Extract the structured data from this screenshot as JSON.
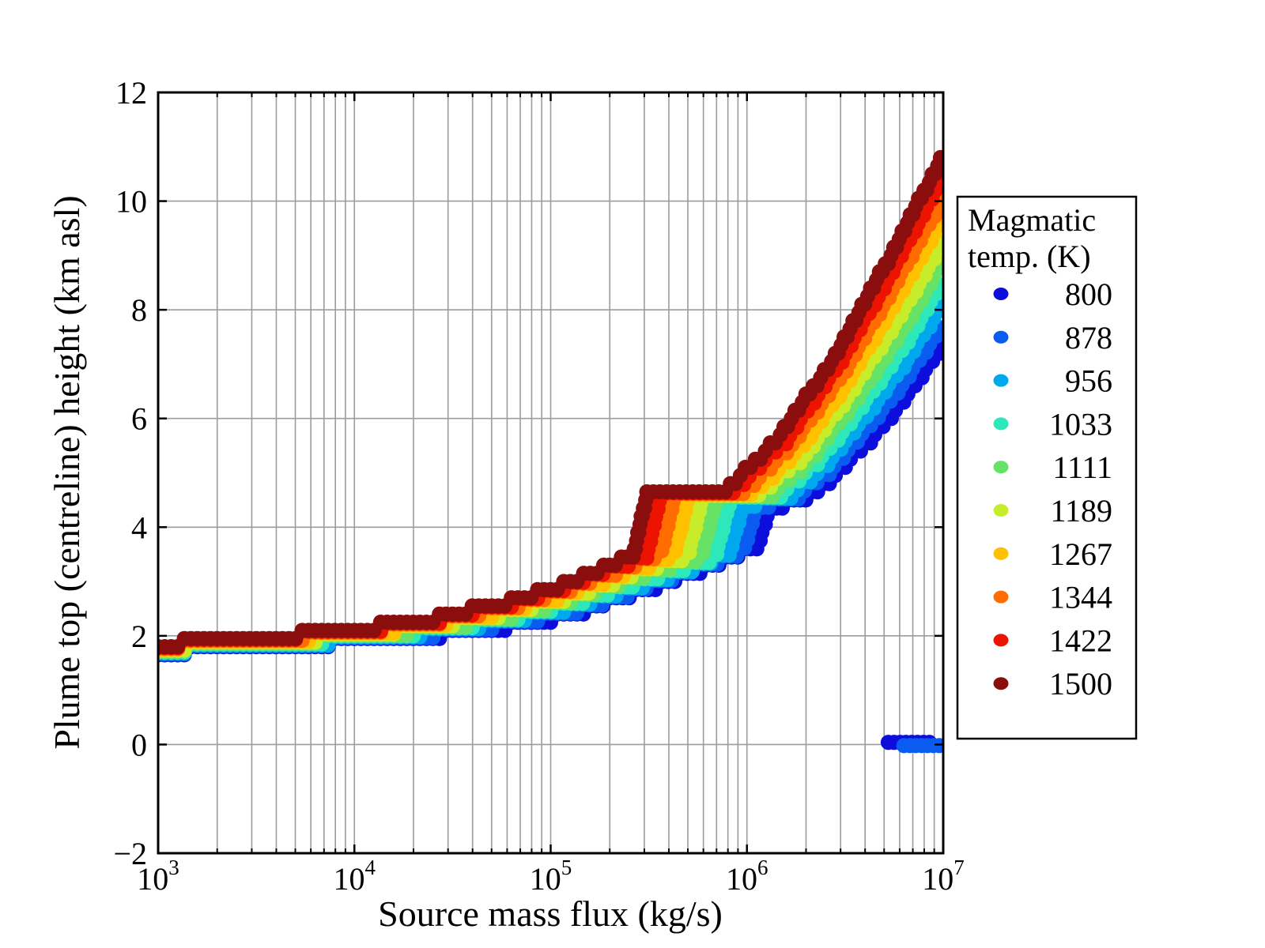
{
  "chart_data": {
    "type": "scatter",
    "title": "",
    "xlabel": "Source mass flux (kg/s)",
    "ylabel": "Plume top (centreline) height (km asl)",
    "x_scale": "log",
    "xlim_log10": [
      3,
      7
    ],
    "ylim": [
      -2,
      12
    ],
    "x_tick_exponents": [
      3,
      4,
      5,
      6,
      7
    ],
    "y_ticks": [
      -2,
      0,
      2,
      4,
      6,
      8,
      10,
      12
    ],
    "y_gridlines": [
      0,
      2,
      4,
      6,
      8,
      10
    ],
    "grid": "vertical minor+major log lines, horizontal major lines",
    "legend_title_line1": "Magmatic",
    "legend_title_line2": "temp. (K)",
    "legend_position": "right of axes",
    "series": [
      {
        "label": "800",
        "temp_K": 800,
        "color": "#0e0edc",
        "points_log10flux_vs_km": [
          [
            3,
            1.7
          ],
          [
            3.5,
            1.78
          ],
          [
            4,
            1.9
          ],
          [
            4.4,
            2.0
          ],
          [
            4.8,
            2.18
          ],
          [
            5.1,
            2.38
          ],
          [
            5.6,
            3.0
          ],
          [
            6.05,
            3.62
          ],
          [
            6.12,
            4.4
          ],
          [
            6.27,
            4.46
          ],
          [
            6.45,
            4.95
          ],
          [
            6.63,
            5.61
          ],
          [
            6.82,
            6.44
          ],
          [
            7,
            7.35
          ]
        ]
      },
      {
        "label": "878",
        "temp_K": 878,
        "color": "#0a5cf0",
        "points_log10flux_vs_km": [
          [
            3,
            1.72
          ],
          [
            3.5,
            1.8
          ],
          [
            4,
            1.92
          ],
          [
            4.4,
            2.04
          ],
          [
            4.8,
            2.23
          ],
          [
            5.1,
            2.45
          ],
          [
            5.55,
            2.98
          ],
          [
            5.98,
            3.55
          ],
          [
            6.05,
            4.42
          ],
          [
            6.23,
            4.48
          ],
          [
            6.42,
            5.02
          ],
          [
            6.61,
            5.8
          ],
          [
            6.81,
            6.72
          ],
          [
            7,
            7.74
          ]
        ]
      },
      {
        "label": "956",
        "temp_K": 956,
        "color": "#00a8ee",
        "points_log10flux_vs_km": [
          [
            3,
            1.73
          ],
          [
            3.5,
            1.82
          ],
          [
            4,
            1.94
          ],
          [
            4.4,
            2.07
          ],
          [
            4.8,
            2.28
          ],
          [
            5.1,
            2.52
          ],
          [
            5.5,
            2.96
          ],
          [
            5.91,
            3.5
          ],
          [
            5.98,
            4.44
          ],
          [
            6.19,
            4.5
          ],
          [
            6.39,
            5.1
          ],
          [
            6.59,
            5.97
          ],
          [
            6.8,
            7.0
          ],
          [
            7,
            8.13
          ]
        ]
      },
      {
        "label": "1033",
        "temp_K": 1033,
        "color": "#2de8b8",
        "points_log10flux_vs_km": [
          [
            3,
            1.75
          ],
          [
            3.5,
            1.84
          ],
          [
            4,
            1.96
          ],
          [
            4.4,
            2.11
          ],
          [
            4.8,
            2.33
          ],
          [
            5.1,
            2.59
          ],
          [
            5.48,
            3.03
          ],
          [
            5.84,
            3.45
          ],
          [
            5.91,
            4.47
          ],
          [
            6.14,
            4.53
          ],
          [
            6.36,
            5.19
          ],
          [
            6.57,
            6.15
          ],
          [
            6.79,
            7.28
          ],
          [
            7,
            8.52
          ]
        ]
      },
      {
        "label": "1111",
        "temp_K": 1111,
        "color": "#66e266",
        "points_log10flux_vs_km": [
          [
            3,
            1.77
          ],
          [
            3.5,
            1.86
          ],
          [
            4,
            1.99
          ],
          [
            4.4,
            2.14
          ],
          [
            4.8,
            2.38
          ],
          [
            5.1,
            2.66
          ],
          [
            5.44,
            3.08
          ],
          [
            5.77,
            3.48
          ],
          [
            5.84,
            4.49
          ],
          [
            6.1,
            4.55
          ],
          [
            6.33,
            5.27
          ],
          [
            6.55,
            6.32
          ],
          [
            6.78,
            7.55
          ],
          [
            7,
            8.91
          ]
        ]
      },
      {
        "label": "1189",
        "temp_K": 1189,
        "color": "#c6ec2a",
        "points_log10flux_vs_km": [
          [
            3,
            1.78
          ],
          [
            3.5,
            1.88
          ],
          [
            4,
            2.01
          ],
          [
            4.4,
            2.18
          ],
          [
            4.8,
            2.44
          ],
          [
            5.1,
            2.72
          ],
          [
            5.41,
            3.12
          ],
          [
            5.7,
            3.49
          ],
          [
            5.77,
            4.51
          ],
          [
            6.06,
            4.57
          ],
          [
            6.3,
            5.35
          ],
          [
            6.53,
            6.49
          ],
          [
            6.77,
            7.82
          ],
          [
            7,
            9.29
          ]
        ]
      },
      {
        "label": "1267",
        "temp_K": 1267,
        "color": "#ffc000",
        "points_log10flux_vs_km": [
          [
            3,
            1.8
          ],
          [
            3.5,
            1.9
          ],
          [
            4,
            2.04
          ],
          [
            4.4,
            2.21
          ],
          [
            4.8,
            2.49
          ],
          [
            5.1,
            2.79
          ],
          [
            5.37,
            3.15
          ],
          [
            5.63,
            3.5
          ],
          [
            5.7,
            4.53
          ],
          [
            6.02,
            4.59
          ],
          [
            6.27,
            5.43
          ],
          [
            6.51,
            6.66
          ],
          [
            6.75,
            8.09
          ],
          [
            7,
            9.68
          ]
        ]
      },
      {
        "label": "1344",
        "temp_K": 1344,
        "color": "#ff6c00",
        "points_log10flux_vs_km": [
          [
            3,
            1.82
          ],
          [
            3.5,
            1.92
          ],
          [
            4,
            2.07
          ],
          [
            4.4,
            2.25
          ],
          [
            4.8,
            2.54
          ],
          [
            5.1,
            2.86
          ],
          [
            5.33,
            3.18
          ],
          [
            5.56,
            3.5
          ],
          [
            5.63,
            4.56
          ],
          [
            5.98,
            4.62
          ],
          [
            6.23,
            5.52
          ],
          [
            6.49,
            6.83
          ],
          [
            6.74,
            8.37
          ],
          [
            7,
            10.07
          ]
        ]
      },
      {
        "label": "1422",
        "temp_K": 1422,
        "color": "#ec1400",
        "points_log10flux_vs_km": [
          [
            3,
            1.83
          ],
          [
            3.5,
            1.94
          ],
          [
            4,
            2.09
          ],
          [
            4.4,
            2.28
          ],
          [
            4.8,
            2.59
          ],
          [
            5.1,
            2.93
          ],
          [
            5.3,
            3.22
          ],
          [
            5.49,
            3.49
          ],
          [
            5.56,
            4.58
          ],
          [
            5.93,
            4.64
          ],
          [
            6.2,
            5.6
          ],
          [
            6.47,
            7.0
          ],
          [
            6.73,
            8.64
          ],
          [
            7,
            10.46
          ]
        ]
      },
      {
        "label": "1500",
        "temp_K": 1500,
        "color": "#8a0e0e",
        "points_log10flux_vs_km": [
          [
            3,
            1.85
          ],
          [
            3.5,
            1.96
          ],
          [
            4,
            2.12
          ],
          [
            4.4,
            2.32
          ],
          [
            4.8,
            2.64
          ],
          [
            5.1,
            3.0
          ],
          [
            5.27,
            3.26
          ],
          [
            5.42,
            3.48
          ],
          [
            5.49,
            4.6
          ],
          [
            5.89,
            4.66
          ],
          [
            6.17,
            5.68
          ],
          [
            6.45,
            7.17
          ],
          [
            6.72,
            8.92
          ],
          [
            7,
            10.85
          ]
        ]
      }
    ],
    "collapse_series": [
      {
        "label": "800",
        "color": "#0e0edc",
        "y_km": 0.04,
        "log10flux_range": [
          6.72,
          6.94
        ]
      },
      {
        "label": "878",
        "color": "#0a5cf0",
        "y_km": -0.02,
        "log10flux_range": [
          6.8,
          7.0
        ]
      }
    ]
  },
  "colors": {
    "grid": "#9c9c9c",
    "spine": "#000000",
    "background": "#ffffff"
  }
}
